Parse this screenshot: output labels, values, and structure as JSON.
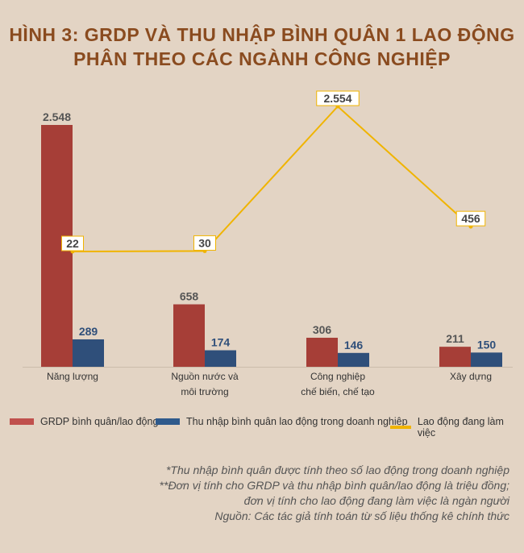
{
  "title_line1": "HÌNH 3: GRDP VÀ THU NHẬP BÌNH QUÂN 1 LAO ĐỘNG",
  "title_line2": "PHÂN THEO CÁC NGÀNH CÔNG NGHIỆP",
  "chart_data": {
    "type": "bar+line",
    "categories": [
      [
        "Năng lượng"
      ],
      [
        "Nguồn nước và",
        "môi trường"
      ],
      [
        "Công nghiệp",
        "chế biến, chế tạo"
      ],
      [
        "Xây dựng"
      ]
    ],
    "series": [
      {
        "name": "GRDP bình quân/lao động",
        "type": "bar",
        "color": "#a63e37",
        "values": [
          2548,
          658,
          306,
          211
        ],
        "labels": [
          "2.548",
          "658",
          "306",
          "211"
        ]
      },
      {
        "name": "Thu nhập bình quân lao động trong doanh nghiệp",
        "type": "bar",
        "color": "#2f4f7a",
        "values": [
          289,
          174,
          146,
          150
        ],
        "labels": [
          "289",
          "174",
          "146",
          "150"
        ]
      },
      {
        "name": "Lao động đang làm việc",
        "type": "line",
        "color": "#f0b400",
        "values": [
          22,
          30,
          2554,
          456
        ],
        "labels": [
          "22",
          "30",
          "2.554",
          "456"
        ]
      }
    ],
    "legend": "bottom",
    "grid": false
  },
  "notes": [
    "*Thu nhập bình quân được tính theo số lao động trong doanh nghiệp",
    "**Đơn vị tính cho GRDP và thu nhập bình quân/lao động là triệu đồng;",
    "đơn vị tính cho lao động đang làm việc là ngàn người",
    "Nguồn: Các tác giả tính toán từ số liệu thống kê chính thức"
  ]
}
